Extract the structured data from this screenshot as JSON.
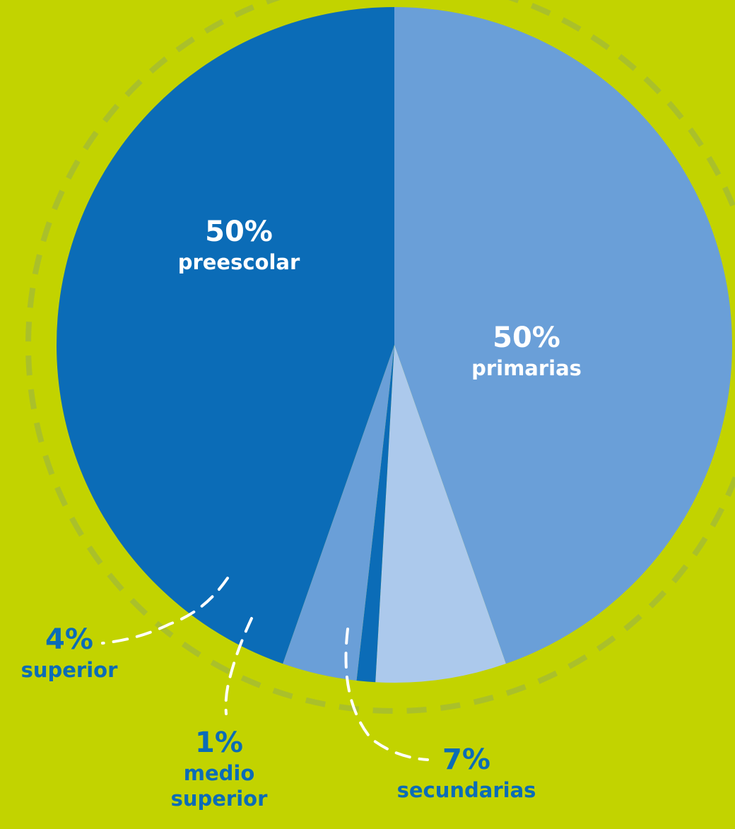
{
  "chart_data": {
    "type": "pie",
    "slices": [
      {
        "key": "primarias",
        "pct_label": "50%",
        "name": "primarias",
        "value": 50,
        "color": "#6a9fd8"
      },
      {
        "key": "secundarias",
        "pct_label": "7%",
        "name": "secundarias",
        "value": 7,
        "color": "#acc9ec"
      },
      {
        "key": "medio_superior",
        "pct_label": "1%",
        "name": "medio superior",
        "value": 1,
        "color": "#0b6cb7"
      },
      {
        "key": "superior",
        "pct_label": "4%",
        "name": "superior",
        "value": 4,
        "color": "#6a9fd8"
      },
      {
        "key": "preescolar",
        "pct_label": "50%",
        "name": "preescolar",
        "value": 50,
        "color": "#0b6cb7"
      }
    ],
    "start_at": "top",
    "direction": "clockwise",
    "legend": "none",
    "background": "#c2d300",
    "ring_color": "#aac02a",
    "leader_color": "#ffffff"
  }
}
